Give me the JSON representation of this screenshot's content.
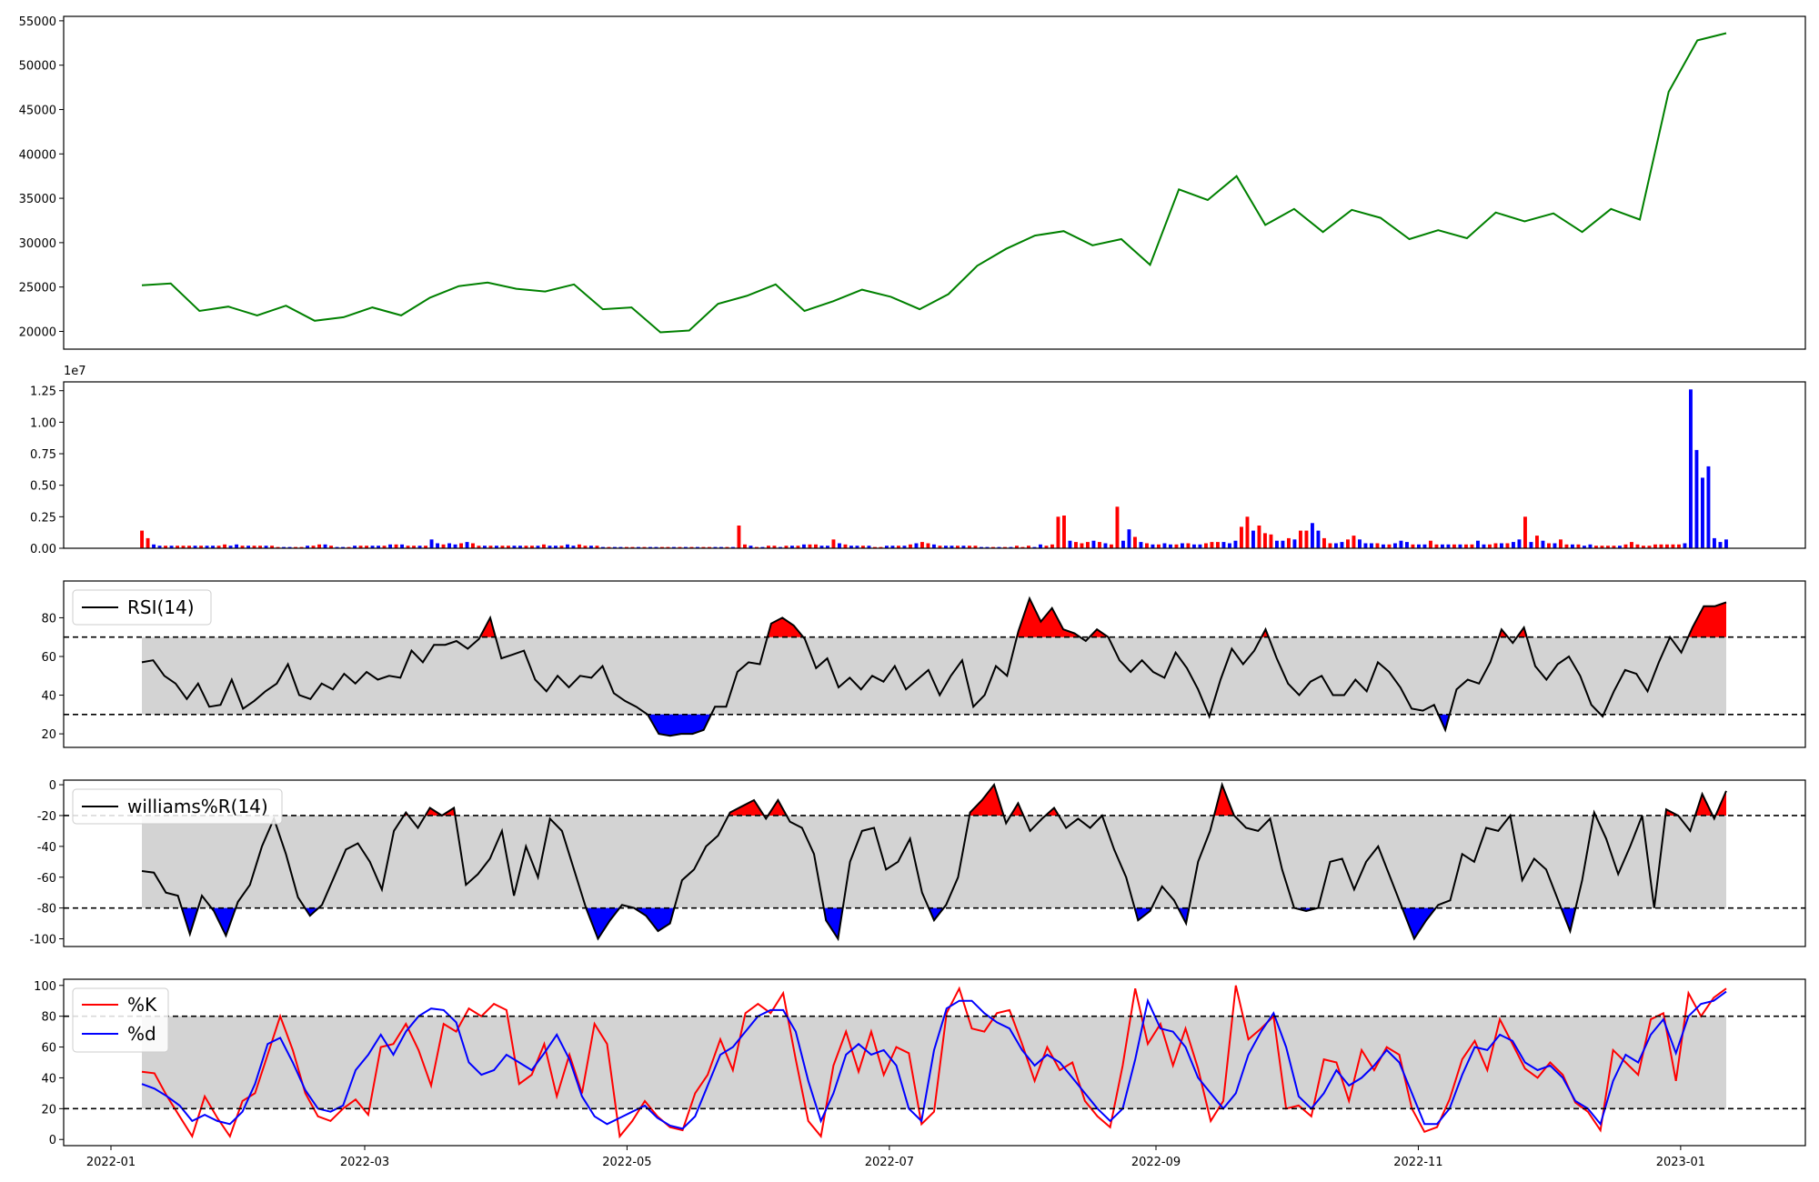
{
  "chart_data": [
    {
      "id": "price",
      "type": "line",
      "color": "#008000",
      "x_ticks": [],
      "y_ticks": [
        "20000",
        "25000",
        "30000",
        "35000",
        "40000",
        "45000",
        "50000",
        "55000"
      ],
      "ylim": [
        18000,
        55500
      ],
      "x": [
        "2022-01-05",
        "2022-01-12",
        "2022-01-19",
        "2022-01-26",
        "2022-02-02",
        "2022-02-09",
        "2022-02-16",
        "2022-02-23",
        "2022-03-02",
        "2022-03-09",
        "2022-03-16",
        "2022-03-23",
        "2022-03-30",
        "2022-04-06",
        "2022-04-13",
        "2022-04-20",
        "2022-04-27",
        "2022-05-04",
        "2022-05-11",
        "2022-05-18",
        "2022-05-25",
        "2022-06-01",
        "2022-06-08",
        "2022-06-15",
        "2022-06-22",
        "2022-06-29",
        "2022-07-06",
        "2022-07-13",
        "2022-07-20",
        "2022-07-27",
        "2022-08-03",
        "2022-08-10",
        "2022-08-17",
        "2022-08-24",
        "2022-08-31",
        "2022-09-07",
        "2022-09-14",
        "2022-09-21",
        "2022-09-28",
        "2022-10-05",
        "2022-10-12",
        "2022-10-19",
        "2022-10-26",
        "2022-11-02",
        "2022-11-09",
        "2022-11-16",
        "2022-11-23",
        "2022-11-30",
        "2022-12-07",
        "2022-12-14",
        "2022-12-21",
        "2022-12-28",
        "2023-01-02",
        "2023-01-05",
        "2023-01-09",
        "2023-01-12"
      ],
      "values": [
        25200,
        25400,
        22300,
        22800,
        21800,
        22900,
        21200,
        21600,
        22700,
        21800,
        23800,
        25100,
        25500,
        24800,
        24500,
        25300,
        22500,
        22700,
        19900,
        20100,
        23100,
        24000,
        25300,
        22300,
        23400,
        24700,
        23900,
        22500,
        24200,
        27400,
        29300,
        30800,
        31300,
        29700,
        30400,
        27500,
        36000,
        34800,
        37500,
        32000,
        33800,
        31200,
        33700,
        32800,
        30400,
        31400,
        30500,
        33400,
        32400,
        33300,
        31200,
        33800,
        32600,
        47000,
        52800,
        53600
      ]
    },
    {
      "id": "volume",
      "type": "bar",
      "exponent_label": "1e7",
      "up_color": "#ff0000",
      "down_color": "#0000ff",
      "y_ticks": [
        "0.00",
        "0.25",
        "0.50",
        "0.75",
        "1.00",
        "1.25"
      ],
      "ylim": [
        0,
        1.32
      ],
      "values": [
        0.14,
        0.08,
        0.03,
        0.02,
        0.02,
        0.02,
        0.02,
        0.02,
        0.02,
        0.02,
        0.02,
        0.02,
        0.02,
        0.02,
        0.03,
        0.02,
        0.03,
        0.02,
        0.02,
        0.02,
        0.02,
        0.02,
        0.02,
        0.01,
        0.01,
        0.01,
        0.01,
        0.01,
        0.02,
        0.02,
        0.03,
        0.03,
        0.02,
        0.01,
        0.01,
        0.01,
        0.02,
        0.02,
        0.02,
        0.02,
        0.02,
        0.02,
        0.03,
        0.03,
        0.03,
        0.02,
        0.02,
        0.02,
        0.02,
        0.07,
        0.04,
        0.03,
        0.04,
        0.03,
        0.04,
        0.05,
        0.04,
        0.02,
        0.02,
        0.02,
        0.02,
        0.02,
        0.02,
        0.02,
        0.02,
        0.02,
        0.02,
        0.02,
        0.03,
        0.02,
        0.02,
        0.02,
        0.03,
        0.02,
        0.03,
        0.02,
        0.02,
        0.02,
        0.01,
        0.01,
        0.01,
        0.01,
        0.01,
        0.01,
        0.01,
        0.01,
        0.01,
        0.01,
        0.01,
        0.01,
        0.01,
        0.01,
        0.01,
        0.01,
        0.01,
        0.01,
        0.01,
        0.01,
        0.01,
        0.01,
        0.01,
        0.18,
        0.03,
        0.02,
        0.01,
        0.01,
        0.02,
        0.02,
        0.01,
        0.02,
        0.02,
        0.02,
        0.03,
        0.03,
        0.03,
        0.02,
        0.02,
        0.07,
        0.04,
        0.03,
        0.02,
        0.02,
        0.02,
        0.02,
        0.01,
        0.01,
        0.02,
        0.02,
        0.02,
        0.02,
        0.03,
        0.04,
        0.05,
        0.04,
        0.03,
        0.02,
        0.02,
        0.02,
        0.02,
        0.02,
        0.02,
        0.02,
        0.01,
        0.01,
        0.01,
        0.01,
        0.01,
        0.01,
        0.02,
        0.01,
        0.02,
        0.01,
        0.03,
        0.02,
        0.03,
        0.25,
        0.26,
        0.06,
        0.05,
        0.04,
        0.05,
        0.06,
        0.05,
        0.04,
        0.03,
        0.33,
        0.06,
        0.15,
        0.09,
        0.05,
        0.04,
        0.03,
        0.03,
        0.04,
        0.03,
        0.03,
        0.04,
        0.04,
        0.03,
        0.03,
        0.04,
        0.05,
        0.05,
        0.05,
        0.04,
        0.06,
        0.17,
        0.25,
        0.14,
        0.18,
        0.12,
        0.11,
        0.06,
        0.06,
        0.08,
        0.07,
        0.14,
        0.14,
        0.2,
        0.14,
        0.08,
        0.04,
        0.04,
        0.05,
        0.07,
        0.1,
        0.07,
        0.04,
        0.04,
        0.04,
        0.03,
        0.03,
        0.04,
        0.06,
        0.05,
        0.03,
        0.03,
        0.03,
        0.06,
        0.03,
        0.03,
        0.03,
        0.03,
        0.03,
        0.03,
        0.03,
        0.06,
        0.03,
        0.03,
        0.04,
        0.04,
        0.04,
        0.05,
        0.07,
        0.25,
        0.05,
        0.1,
        0.06,
        0.04,
        0.04,
        0.07,
        0.03,
        0.03,
        0.03,
        0.02,
        0.03,
        0.02,
        0.02,
        0.02,
        0.02,
        0.02,
        0.03,
        0.05,
        0.03,
        0.02,
        0.02,
        0.03,
        0.03,
        0.03,
        0.03,
        0.03,
        0.04,
        1.26,
        0.78,
        0.56,
        0.65,
        0.08,
        0.05,
        0.07
      ],
      "up": [
        1,
        1,
        0,
        0,
        1,
        0,
        1,
        1,
        1,
        0,
        1,
        0,
        0,
        1,
        1,
        0,
        0,
        1,
        0,
        1,
        1,
        0,
        1,
        1,
        0,
        0,
        1,
        1,
        0,
        1,
        1,
        0,
        1,
        0,
        0,
        1,
        0,
        1,
        1,
        0,
        0,
        1,
        0,
        1,
        0,
        1,
        1,
        0,
        1,
        0,
        0,
        1,
        0,
        0,
        1,
        0,
        1,
        1,
        0,
        1,
        0,
        1,
        1,
        0,
        0,
        1,
        1,
        0,
        1,
        0,
        0,
        1,
        0,
        0,
        1,
        1,
        0,
        1,
        0,
        1,
        0,
        0,
        1,
        1,
        0,
        1,
        0,
        0,
        1,
        1,
        0,
        1,
        0,
        1,
        0,
        1,
        1,
        0,
        0,
        1,
        0,
        1,
        1,
        0,
        1,
        0,
        1,
        1,
        0,
        1,
        0,
        1,
        0,
        1,
        1,
        0,
        0,
        1,
        0,
        1,
        0,
        0,
        1,
        0,
        1,
        1,
        0,
        0,
        1,
        0,
        1,
        0,
        1,
        1,
        0,
        1,
        0,
        0,
        1,
        0,
        1,
        1,
        0,
        0,
        1,
        0,
        1,
        0,
        1,
        1,
        1,
        0,
        0,
        1,
        1,
        1,
        1,
        0,
        1,
        1,
        1,
        0,
        1,
        0,
        1,
        1,
        0,
        0,
        1,
        0,
        1,
        0,
        1,
        0,
        0,
        1,
        0,
        1,
        0,
        0,
        1,
        1,
        1,
        0,
        0,
        0,
        1,
        1,
        0,
        1,
        1,
        1,
        0,
        0,
        1,
        0,
        1,
        1,
        0,
        0,
        1,
        1,
        0,
        0,
        1,
        1,
        0,
        0,
        0,
        1,
        0,
        1,
        0,
        0,
        0,
        1,
        0,
        0,
        1,
        1,
        0,
        0,
        1,
        0,
        1,
        1,
        0,
        0,
        1,
        1,
        0,
        1,
        0,
        0,
        1,
        0,
        1,
        0,
        1,
        0,
        1,
        1,
        0,
        1,
        0,
        0,
        1,
        1,
        1,
        1,
        0,
        1,
        1,
        1,
        1,
        1,
        1,
        1,
        1,
        1,
        1
      ]
    },
    {
      "id": "rsi",
      "type": "line",
      "legend": "RSI(14)",
      "y_ticks": [
        "20",
        "40",
        "60",
        "80"
      ],
      "ylim": [
        13,
        99
      ],
      "upper": 70,
      "lower": 30,
      "line_color": "#000000",
      "over_color": "#ff0000",
      "under_color": "#0000ff",
      "band_color": "#d3d3d3",
      "values": [
        57,
        58,
        50,
        46,
        38,
        46,
        34,
        35,
        48,
        33,
        37,
        42,
        46,
        56,
        40,
        38,
        46,
        43,
        51,
        46,
        52,
        48,
        50,
        49,
        63,
        57,
        66,
        66,
        68,
        64,
        69,
        80,
        59,
        61,
        63,
        48,
        42,
        50,
        44,
        50,
        49,
        55,
        41,
        37,
        34,
        30,
        20,
        19,
        20,
        20,
        22,
        34,
        34,
        52,
        57,
        56,
        77,
        80,
        76,
        69,
        54,
        59,
        44,
        49,
        43,
        50,
        47,
        55,
        43,
        48,
        53,
        40,
        50,
        58,
        34,
        40,
        55,
        50,
        73,
        90,
        78,
        85,
        74,
        72,
        68,
        74,
        70,
        58,
        52,
        58,
        52,
        49,
        62,
        54,
        43,
        29,
        48,
        64,
        56,
        63,
        74,
        59,
        46,
        40,
        47,
        50,
        40,
        40,
        48,
        42,
        57,
        52,
        44,
        33,
        32,
        35,
        22,
        43,
        48,
        46,
        57,
        74,
        67,
        75,
        55,
        48,
        56,
        60,
        50,
        35,
        29,
        42,
        53,
        51,
        42,
        57,
        70,
        62,
        75,
        86,
        86,
        88
      ]
    },
    {
      "id": "williams",
      "type": "line",
      "legend": "williams%R(14)",
      "y_ticks": [
        "-100",
        "-80",
        "-60",
        "-40",
        "-20",
        "0"
      ],
      "ylim": [
        -105,
        3
      ],
      "upper": -20,
      "lower": -80,
      "line_color": "#000000",
      "over_color": "#ff0000",
      "under_color": "#0000ff",
      "band_color": "#d3d3d3",
      "values": [
        -56,
        -57,
        -70,
        -72,
        -97,
        -72,
        -82,
        -98,
        -76,
        -65,
        -40,
        -22,
        -45,
        -73,
        -85,
        -78,
        -60,
        -42,
        -38,
        -50,
        -68,
        -30,
        -18,
        -28,
        -15,
        -20,
        -15,
        -65,
        -58,
        -48,
        -30,
        -72,
        -40,
        -60,
        -22,
        -30,
        -55,
        -80,
        -100,
        -88,
        -78,
        -80,
        -85,
        -95,
        -90,
        -62,
        -55,
        -40,
        -33,
        -18,
        -14,
        -10,
        -22,
        -10,
        -24,
        -28,
        -45,
        -88,
        -100,
        -50,
        -30,
        -28,
        -55,
        -50,
        -35,
        -70,
        -88,
        -78,
        -60,
        -18,
        -10,
        0,
        -25,
        -12,
        -30,
        -22,
        -15,
        -28,
        -22,
        -28,
        -20,
        -42,
        -60,
        -88,
        -82,
        -66,
        -75,
        -90,
        -50,
        -30,
        0,
        -20,
        -28,
        -30,
        -22,
        -55,
        -80,
        -82,
        -80,
        -50,
        -48,
        -68,
        -50,
        -40,
        -60,
        -80,
        -100,
        -88,
        -78,
        -75,
        -45,
        -50,
        -28,
        -30,
        -20,
        -62,
        -48,
        -55,
        -75,
        -95,
        -62,
        -18,
        -35,
        -58,
        -40,
        -20,
        -80,
        -16,
        -20,
        -30,
        -6,
        -22,
        -4
      ]
    },
    {
      "id": "stochastic",
      "type": "line",
      "y_ticks": [
        "0",
        "20",
        "40",
        "60",
        "80",
        "100"
      ],
      "ylim": [
        -4,
        104
      ],
      "upper": 80,
      "lower": 20,
      "band_color": "#d3d3d3",
      "series": [
        {
          "name": "%K",
          "color": "#ff0000",
          "values": [
            44,
            43,
            28,
            15,
            2,
            28,
            14,
            2,
            25,
            30,
            55,
            80,
            58,
            30,
            15,
            12,
            20,
            26,
            16,
            60,
            62,
            75,
            58,
            35,
            75,
            70,
            85,
            80,
            88,
            84,
            36,
            42,
            62,
            28,
            55,
            30,
            75,
            62,
            2,
            12,
            25,
            15,
            8,
            6,
            30,
            42,
            65,
            45,
            82,
            88,
            82,
            95,
            52,
            12,
            2,
            48,
            70,
            44,
            70,
            42,
            60,
            56,
            10,
            18,
            82,
            98,
            72,
            70,
            82,
            84,
            62,
            38,
            60,
            45,
            50,
            25,
            15,
            8,
            48,
            98,
            62,
            75,
            48,
            72,
            46,
            12,
            25,
            100,
            65,
            72,
            80,
            20,
            22,
            15,
            52,
            50,
            25,
            58,
            45,
            60,
            55,
            20,
            5,
            8,
            26,
            52,
            64,
            45,
            78,
            62,
            46,
            40,
            50,
            42,
            24,
            18,
            6,
            58,
            50,
            42,
            78,
            82,
            38,
            95,
            80,
            92,
            98
          ]
        },
        {
          "name": "%d",
          "color": "#0000ff",
          "values": [
            36,
            33,
            28,
            22,
            12,
            16,
            12,
            10,
            18,
            36,
            62,
            66,
            50,
            32,
            20,
            18,
            22,
            45,
            55,
            68,
            55,
            70,
            80,
            85,
            84,
            76,
            50,
            42,
            45,
            55,
            50,
            45,
            56,
            68,
            52,
            28,
            15,
            10,
            14,
            18,
            22,
            14,
            9,
            7,
            15,
            35,
            55,
            60,
            70,
            80,
            84,
            84,
            70,
            38,
            12,
            30,
            55,
            62,
            55,
            58,
            48,
            20,
            12,
            58,
            85,
            90,
            90,
            82,
            76,
            72,
            58,
            48,
            55,
            50,
            40,
            30,
            20,
            12,
            20,
            52,
            90,
            72,
            70,
            60,
            40,
            30,
            20,
            30,
            55,
            70,
            82,
            60,
            28,
            20,
            30,
            45,
            35,
            40,
            48,
            58,
            50,
            30,
            10,
            10,
            20,
            42,
            60,
            58,
            68,
            64,
            50,
            45,
            48,
            40,
            25,
            20,
            10,
            38,
            55,
            50,
            68,
            78,
            56,
            80,
            88,
            90,
            96
          ]
        }
      ],
      "x_ticks": [
        "2022-01",
        "2022-03",
        "2022-05",
        "2022-07",
        "2022-09",
        "2022-11",
        "2023-01"
      ]
    }
  ]
}
